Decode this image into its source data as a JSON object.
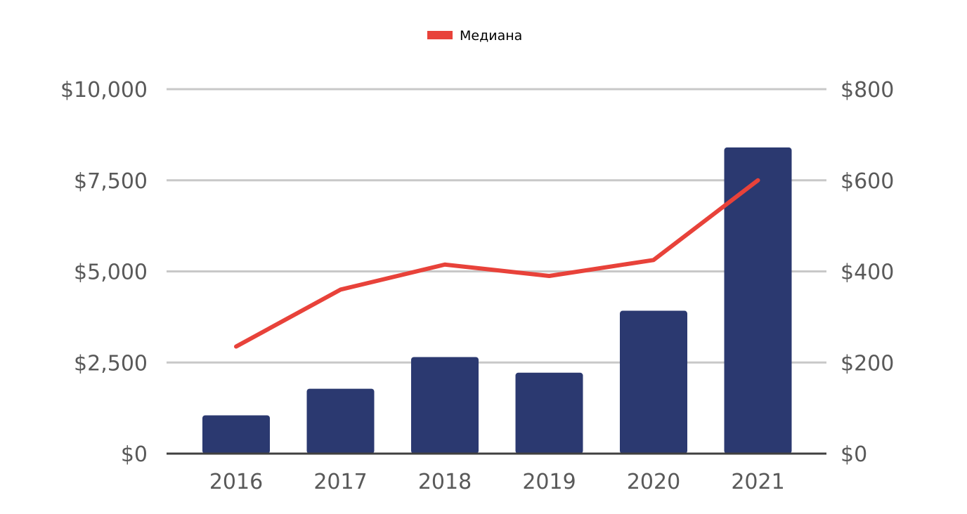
{
  "chart_data": {
    "type": "bar",
    "categories": [
      "2016",
      "2017",
      "2018",
      "2019",
      "2020",
      "2021"
    ],
    "series": [
      {
        "type": "bar",
        "axis": "left",
        "color": "#2b3970",
        "values": [
          1050,
          1780,
          2650,
          2220,
          3920,
          8400
        ]
      },
      {
        "name": "Медиана",
        "type": "line",
        "axis": "right",
        "color": "#e8423a",
        "values": [
          235,
          360,
          415,
          390,
          425,
          600
        ]
      }
    ],
    "y_left": {
      "ylim": [
        0,
        10000
      ],
      "ticks": [
        0,
        2500,
        5000,
        7500,
        10000
      ],
      "tick_labels": [
        "$0",
        "$2,500",
        "$5,000",
        "$7,500",
        "$10,000"
      ]
    },
    "y_right": {
      "ylim": [
        0,
        800
      ],
      "ticks": [
        0,
        200,
        400,
        600,
        800
      ],
      "tick_labels": [
        "$0",
        "$200",
        "$400",
        "$600",
        "$800"
      ]
    },
    "grid": true,
    "legend": {
      "position": "top-center",
      "entries": [
        "Медиана"
      ]
    },
    "colors": {
      "gridline": "#c8c8c8",
      "baseline": "#404040",
      "tick_text": "#595959"
    }
  }
}
